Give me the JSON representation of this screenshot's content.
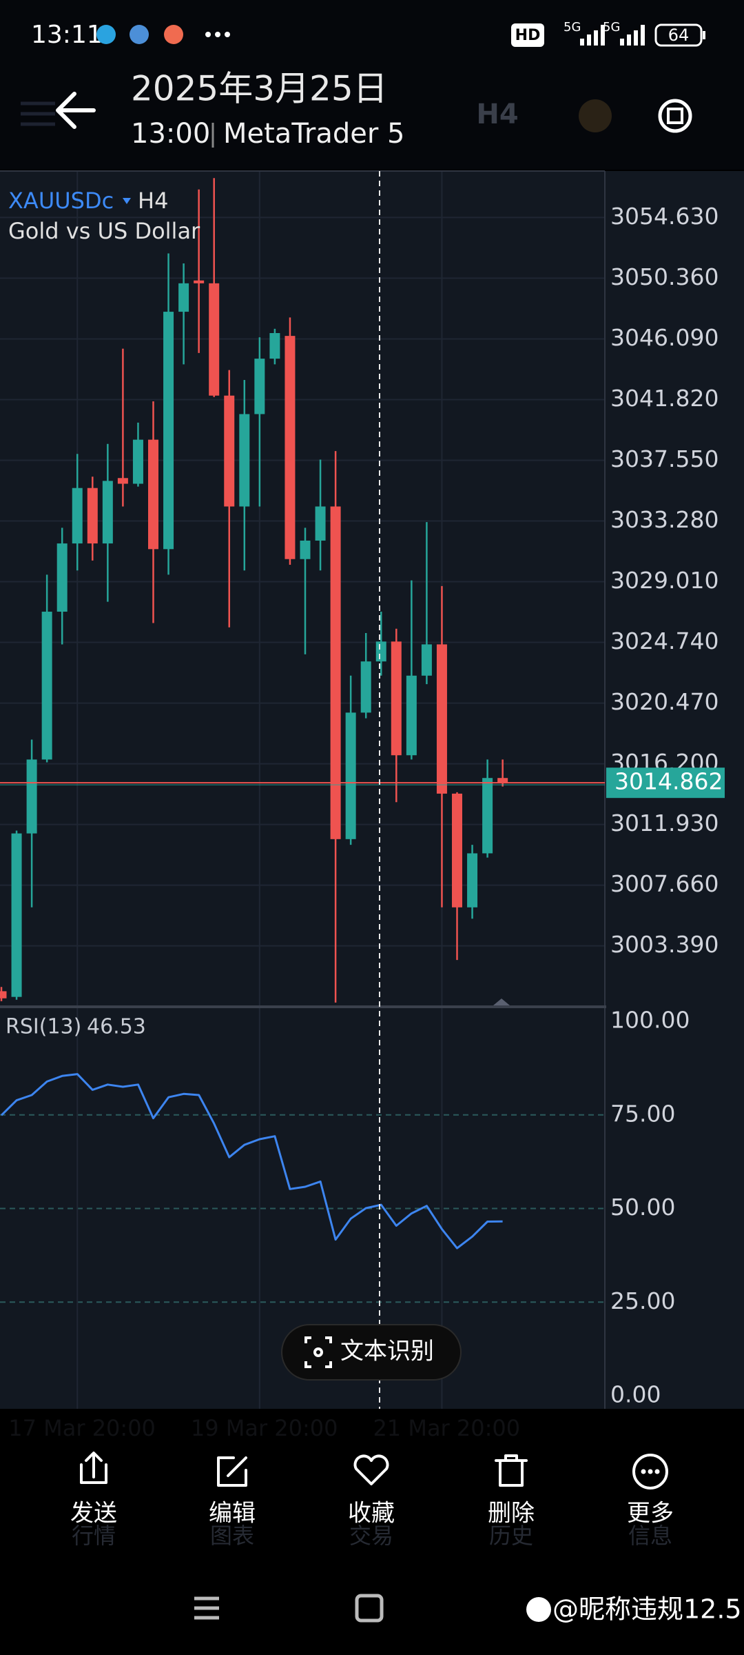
{
  "status_bar": {
    "time": "13:11",
    "hd": "HD",
    "network": [
      "5G",
      "5G"
    ],
    "battery": "64"
  },
  "header": {
    "date": "2025年3月25日",
    "time": "13:00",
    "app": "MetaTrader 5",
    "toolbar": [
      "H4"
    ]
  },
  "chart_data": {
    "type": "candlestick",
    "symbol": "XAUUSDc",
    "timeframe": "H4",
    "subtitle": "Gold vs US Dollar",
    "categories": [
      null,
      null,
      null,
      null,
      null,
      "17 Mar 20:00",
      null,
      null,
      null,
      null,
      null,
      null,
      null,
      null,
      null,
      null,
      null,
      "19 Mar 20:00",
      null,
      null,
      null,
      null,
      null,
      null,
      null,
      null,
      null,
      null,
      null,
      "21 Mar 20:00",
      null,
      null,
      null,
      null
    ],
    "open": [
      3000.2,
      2999.8,
      3011.3,
      3016.5,
      3026.9,
      3031.7,
      3035.6,
      3031.7,
      3036.3,
      3035.9,
      3039.0,
      3031.3,
      3048.0,
      3050.2,
      3050.0,
      3042.1,
      3034.3,
      3040.8,
      3044.7,
      3046.3,
      3030.6,
      3031.9,
      3034.3,
      3010.9,
      3019.8,
      3023.4,
      3024.8,
      3016.8,
      3022.4,
      3024.6,
      3014.1,
      3006.1,
      3009.9,
      3015.2
    ],
    "high": [
      3000.5,
      3011.5,
      3017.9,
      3029.5,
      3032.8,
      3038.0,
      3036.4,
      3038.7,
      3045.4,
      3040.2,
      3041.7,
      3052.1,
      3051.4,
      3056.6,
      3057.4,
      3043.9,
      3043.2,
      3046.2,
      3046.8,
      3047.6,
      3032.8,
      3037.6,
      3038.2,
      3022.4,
      3025.4,
      3026.9,
      3025.7,
      3029.1,
      3033.2,
      3028.7,
      3014.2,
      3010.5,
      3016.5,
      3016.5
    ],
    "low": [
      2999.5,
      2999.6,
      3006.1,
      3016.3,
      3024.6,
      3029.8,
      3030.5,
      3027.6,
      3034.3,
      3035.7,
      3026.1,
      3029.5,
      3044.3,
      3045.1,
      3042.0,
      3025.8,
      3029.8,
      3034.3,
      3044.3,
      3030.2,
      3023.9,
      3029.8,
      2999.4,
      3010.5,
      3019.4,
      3022.4,
      3013.5,
      3016.5,
      3021.8,
      3006.1,
      3002.4,
      3005.3,
      3009.6,
      3014.6
    ],
    "close": [
      2999.7,
      3011.3,
      3016.5,
      3026.9,
      3031.7,
      3035.6,
      3031.7,
      3036.1,
      3035.9,
      3039.0,
      3031.3,
      3048.0,
      3050.0,
      3050.0,
      3042.1,
      3034.3,
      3040.8,
      3044.7,
      3046.5,
      3030.6,
      3031.9,
      3034.3,
      3010.9,
      3019.8,
      3023.4,
      3024.8,
      3016.8,
      3022.4,
      3024.6,
      3014.1,
      3006.1,
      3009.9,
      3015.2,
      3014.862
    ],
    "up_color": "#26a69a",
    "down_color": "#ef5350",
    "ylim": [
      2999.25,
      3057.9
    ],
    "yticks": [
      {
        "value": 3054.63,
        "label": "3054.630"
      },
      {
        "value": 3050.36,
        "label": "3050.360"
      },
      {
        "value": 3046.09,
        "label": "3046.090"
      },
      {
        "value": 3041.82,
        "label": "3041.820"
      },
      {
        "value": 3037.55,
        "label": "3037.550"
      },
      {
        "value": 3033.28,
        "label": "3033.280"
      },
      {
        "value": 3029.01,
        "label": "3029.010"
      },
      {
        "value": 3024.74,
        "label": "3024.740"
      },
      {
        "value": 3020.47,
        "label": "3020.470"
      },
      {
        "value": 3016.2,
        "label": "3016.200"
      },
      {
        "value": 3011.93,
        "label": "3011.930"
      },
      {
        "value": 3007.66,
        "label": "3007.660"
      },
      {
        "value": 3003.39,
        "label": "3003.390"
      }
    ],
    "current_price": 3014.862,
    "grid": true,
    "indicator": {
      "type": "line",
      "name": "RSI(13)",
      "value": 46.53,
      "color": "#3d85f0",
      "values": [
        74.9,
        78.9,
        80.3,
        83.9,
        85.4,
        85.9,
        81.7,
        83.1,
        82.5,
        83.1,
        74.1,
        79.7,
        80.6,
        80.3,
        72.7,
        63.7,
        67.0,
        68.5,
        69.3,
        55.2,
        55.8,
        57.2,
        41.7,
        47.3,
        50.1,
        51.0,
        45.4,
        48.7,
        50.7,
        44.5,
        39.4,
        42.5,
        46.5,
        46.53
      ],
      "ylim": [
        0,
        100
      ],
      "yticks": [
        {
          "value": 100,
          "label": "100.00"
        },
        {
          "value": 75,
          "label": "75.00"
        },
        {
          "value": 50,
          "label": "50.00"
        },
        {
          "value": 25,
          "label": "25.00"
        },
        {
          "value": 0,
          "label": "0.00"
        }
      ]
    }
  },
  "ocr_button": "文本识别",
  "tab_bar": [
    "行情",
    "图表",
    "交易",
    "历史",
    "信息"
  ],
  "actions": [
    "发送",
    "编辑",
    "收藏",
    "删除",
    "更多"
  ],
  "watermark": "@昵称违规12.5"
}
